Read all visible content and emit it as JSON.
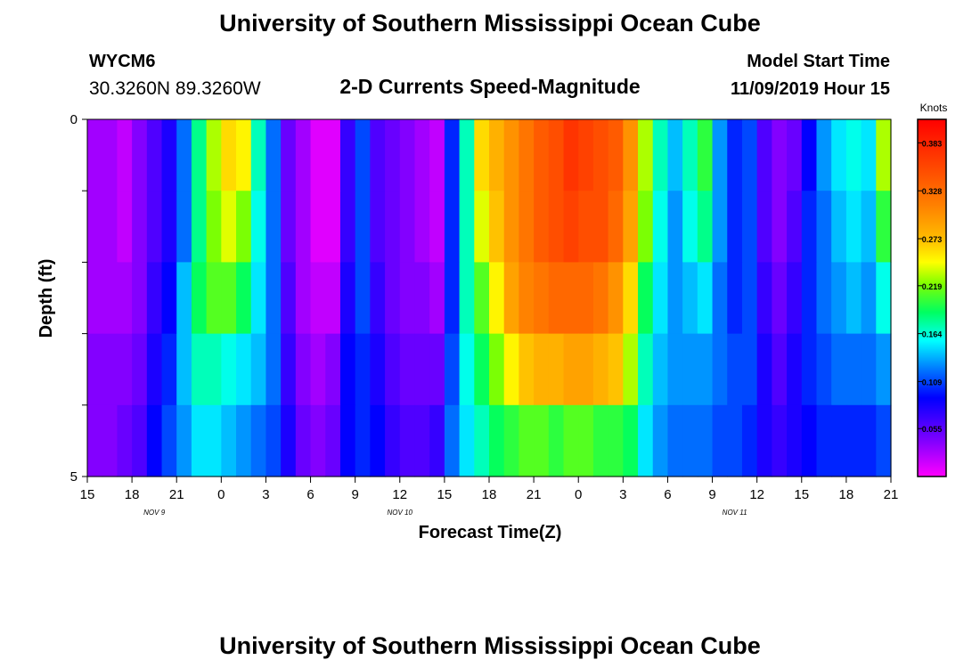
{
  "header": {
    "title": "University of Southern Mississippi Ocean Cube",
    "station_id": "WYCM6",
    "station_coords": "30.3260N 89.3260W",
    "model_start_label": "Model Start Time",
    "model_start_value": "11/09/2019 Hour 15"
  },
  "footer": {
    "title": "University of Southern Mississippi Ocean Cube"
  },
  "chart_data": {
    "type": "heatmap",
    "title": "2-D Currents Speed-Magnitude",
    "xlabel": "Forecast Time(Z)",
    "ylabel": "Depth (ft)",
    "x_tick_labels": [
      "15",
      "18",
      "21",
      "0",
      "3",
      "6",
      "9",
      "12",
      "15",
      "18",
      "21",
      "0",
      "3",
      "6",
      "9",
      "12",
      "15",
      "18",
      "21"
    ],
    "date_labels": [
      {
        "text": "NOV  9",
        "hour_index": 4.5
      },
      {
        "text": "NOV  10",
        "hour_index": 21
      },
      {
        "text": "NOV  11",
        "hour_index": 43.5
      }
    ],
    "y_tick_labels": [
      "0",
      "5"
    ],
    "ylim": [
      0,
      5
    ],
    "colorbar": {
      "label": "Knots",
      "tick_labels": [
        "0.383",
        "0.328",
        "0.273",
        "0.219",
        "0.164",
        "0.109",
        "0.055"
      ],
      "range": [
        0,
        0.41
      ]
    },
    "depth_levels": [
      0,
      1,
      2,
      3,
      4,
      5
    ],
    "hours": 54,
    "values": [
      [
        0.03,
        0.03,
        0.02,
        0.04,
        0.06,
        0.08,
        0.12,
        0.18,
        0.23,
        0.26,
        0.25,
        0.17,
        0.12,
        0.05,
        0.03,
        0.01,
        0.01,
        0.07,
        0.11,
        0.06,
        0.05,
        0.04,
        0.03,
        0.02,
        0.1,
        0.17,
        0.26,
        0.28,
        0.3,
        0.32,
        0.34,
        0.35,
        0.37,
        0.36,
        0.35,
        0.34,
        0.3,
        0.23,
        0.17,
        0.14,
        0.17,
        0.2,
        0.13,
        0.1,
        0.11,
        0.06,
        0.04,
        0.05,
        0.09,
        0.13,
        0.15,
        0.16,
        0.15,
        0.23
      ],
      [
        0.03,
        0.03,
        0.02,
        0.04,
        0.06,
        0.08,
        0.12,
        0.18,
        0.22,
        0.24,
        0.22,
        0.16,
        0.12,
        0.05,
        0.03,
        0.01,
        0.01,
        0.07,
        0.11,
        0.06,
        0.05,
        0.04,
        0.03,
        0.02,
        0.1,
        0.17,
        0.24,
        0.27,
        0.3,
        0.32,
        0.34,
        0.35,
        0.36,
        0.35,
        0.35,
        0.33,
        0.29,
        0.22,
        0.16,
        0.13,
        0.16,
        0.18,
        0.13,
        0.1,
        0.11,
        0.06,
        0.04,
        0.06,
        0.1,
        0.12,
        0.14,
        0.15,
        0.14,
        0.2
      ],
      [
        0.03,
        0.03,
        0.03,
        0.04,
        0.07,
        0.09,
        0.14,
        0.19,
        0.21,
        0.21,
        0.19,
        0.15,
        0.12,
        0.06,
        0.03,
        0.02,
        0.02,
        0.08,
        0.11,
        0.07,
        0.05,
        0.04,
        0.04,
        0.03,
        0.1,
        0.17,
        0.21,
        0.25,
        0.29,
        0.31,
        0.32,
        0.33,
        0.33,
        0.33,
        0.32,
        0.3,
        0.26,
        0.19,
        0.15,
        0.13,
        0.14,
        0.15,
        0.12,
        0.1,
        0.11,
        0.07,
        0.05,
        0.07,
        0.1,
        0.12,
        0.13,
        0.14,
        0.13,
        0.16
      ],
      [
        0.04,
        0.04,
        0.04,
        0.05,
        0.08,
        0.1,
        0.14,
        0.17,
        0.17,
        0.16,
        0.15,
        0.14,
        0.12,
        0.07,
        0.04,
        0.03,
        0.04,
        0.09,
        0.1,
        0.08,
        0.06,
        0.05,
        0.05,
        0.05,
        0.11,
        0.16,
        0.19,
        0.22,
        0.25,
        0.27,
        0.28,
        0.28,
        0.29,
        0.29,
        0.28,
        0.27,
        0.23,
        0.17,
        0.14,
        0.13,
        0.13,
        0.13,
        0.12,
        0.11,
        0.11,
        0.08,
        0.06,
        0.08,
        0.1,
        0.11,
        0.12,
        0.12,
        0.12,
        0.13
      ],
      [
        0.04,
        0.04,
        0.05,
        0.06,
        0.09,
        0.11,
        0.13,
        0.15,
        0.15,
        0.14,
        0.13,
        0.12,
        0.11,
        0.08,
        0.05,
        0.04,
        0.05,
        0.09,
        0.1,
        0.09,
        0.07,
        0.06,
        0.06,
        0.07,
        0.12,
        0.15,
        0.17,
        0.19,
        0.2,
        0.21,
        0.21,
        0.2,
        0.21,
        0.21,
        0.2,
        0.2,
        0.19,
        0.15,
        0.13,
        0.12,
        0.12,
        0.12,
        0.11,
        0.11,
        0.1,
        0.08,
        0.07,
        0.08,
        0.09,
        0.1,
        0.1,
        0.1,
        0.1,
        0.11
      ]
    ]
  }
}
